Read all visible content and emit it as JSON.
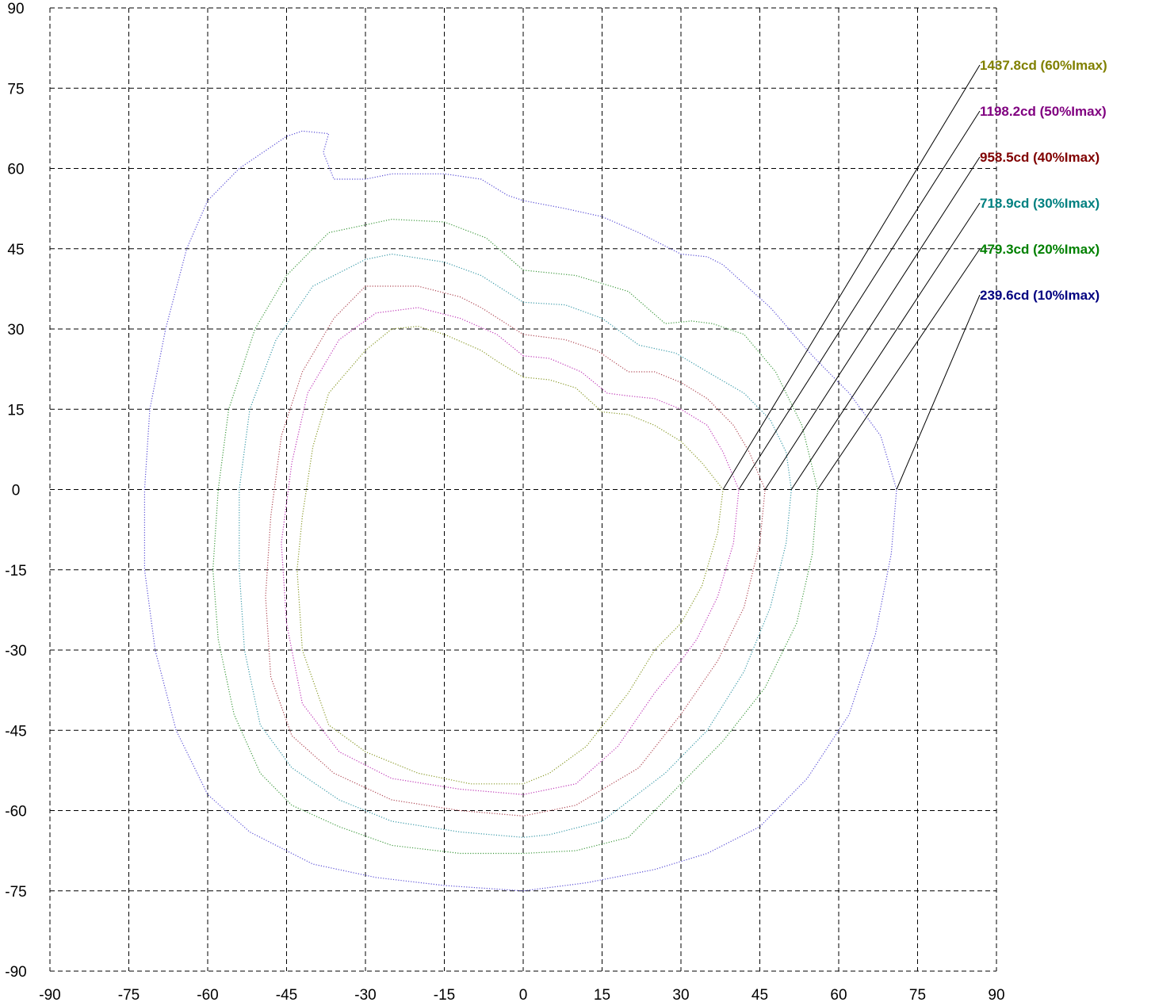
{
  "chart_data": {
    "type": "line",
    "title": "",
    "xlabel": "",
    "ylabel": "",
    "xlim": [
      -90,
      90
    ],
    "ylim": [
      -90,
      90
    ],
    "grid": true,
    "legend_placement": "right",
    "x_ticks": [
      "-90",
      "-75",
      "-60",
      "-45",
      "-30",
      "-15",
      "0",
      "15",
      "30",
      "45",
      "60",
      "75",
      "90"
    ],
    "y_ticks": [
      "90",
      "75",
      "60",
      "45",
      "30",
      "15",
      "0",
      "-15",
      "-30",
      "-45",
      "-60",
      "-75",
      "-90"
    ],
    "series": [
      {
        "name": "239.6cd (10%Imax)",
        "color": "#000080",
        "line_color": "#5a4fd6",
        "anchor": [
          71,
          0
        ],
        "points": [
          [
            0,
            54
          ],
          [
            8,
            52.5
          ],
          [
            15,
            51
          ],
          [
            22,
            48
          ],
          [
            30,
            44
          ],
          [
            35,
            43.5
          ],
          [
            38,
            42
          ],
          [
            47,
            34
          ],
          [
            55,
            25
          ],
          [
            62,
            18
          ],
          [
            68,
            10
          ],
          [
            71,
            0
          ],
          [
            70,
            -12
          ],
          [
            67,
            -27
          ],
          [
            62,
            -42
          ],
          [
            54,
            -54
          ],
          [
            45,
            -63
          ],
          [
            35,
            -68
          ],
          [
            25,
            -71
          ],
          [
            12,
            -73.5
          ],
          [
            0,
            -75
          ],
          [
            -15,
            -74
          ],
          [
            -28,
            -72.5
          ],
          [
            -40,
            -70
          ],
          [
            -52,
            -64
          ],
          [
            -60,
            -57
          ],
          [
            -66,
            -45
          ],
          [
            -70,
            -30
          ],
          [
            -72,
            -15
          ],
          [
            -72,
            0
          ],
          [
            -71,
            15
          ],
          [
            -68,
            30
          ],
          [
            -64,
            45
          ],
          [
            -60,
            54
          ],
          [
            -54,
            60
          ],
          [
            -45,
            66
          ],
          [
            -42,
            67
          ],
          [
            -37,
            66.5
          ],
          [
            -38,
            63
          ],
          [
            -36,
            58
          ],
          [
            -30,
            58
          ],
          [
            -25,
            59
          ],
          [
            -15,
            59
          ],
          [
            -8,
            58
          ],
          [
            -3,
            55
          ],
          [
            0,
            54
          ]
        ]
      },
      {
        "name": "479.3cd (20%Imax)",
        "color": "#008000",
        "line_color": "#3f9a3f",
        "anchor": [
          56,
          0
        ],
        "points": [
          [
            0,
            41
          ],
          [
            10,
            40
          ],
          [
            20,
            37
          ],
          [
            27,
            31
          ],
          [
            32,
            31.5
          ],
          [
            36,
            31
          ],
          [
            42,
            29
          ],
          [
            48,
            22
          ],
          [
            53,
            12
          ],
          [
            56,
            0
          ],
          [
            55,
            -12
          ],
          [
            52,
            -25
          ],
          [
            46,
            -37
          ],
          [
            38,
            -47
          ],
          [
            30,
            -55
          ],
          [
            20,
            -65
          ],
          [
            10,
            -67.5
          ],
          [
            0,
            -68
          ],
          [
            -12,
            -68
          ],
          [
            -25,
            -66.5
          ],
          [
            -35,
            -63
          ],
          [
            -44,
            -59
          ],
          [
            -50,
            -53
          ],
          [
            -55,
            -42
          ],
          [
            -58,
            -28
          ],
          [
            -59,
            -15
          ],
          [
            -58,
            0
          ],
          [
            -56,
            15
          ],
          [
            -51,
            30
          ],
          [
            -45,
            40
          ],
          [
            -37,
            48
          ],
          [
            -25,
            50.5
          ],
          [
            -15,
            50
          ],
          [
            -7,
            47
          ],
          [
            0,
            41
          ]
        ]
      },
      {
        "name": "718.9cd (30%Imax)",
        "color": "#008080",
        "line_color": "#3a9aa8",
        "anchor": [
          51,
          0
        ],
        "points": [
          [
            0,
            35
          ],
          [
            8,
            34.5
          ],
          [
            15,
            32
          ],
          [
            22,
            27
          ],
          [
            29,
            25.5
          ],
          [
            35,
            22
          ],
          [
            42,
            18
          ],
          [
            47,
            13
          ],
          [
            50,
            7
          ],
          [
            51,
            0
          ],
          [
            50,
            -10
          ],
          [
            47,
            -22
          ],
          [
            42,
            -34
          ],
          [
            35,
            -45
          ],
          [
            27,
            -53
          ],
          [
            15,
            -62
          ],
          [
            5,
            -64.5
          ],
          [
            0,
            -65
          ],
          [
            -12,
            -64
          ],
          [
            -25,
            -62
          ],
          [
            -35,
            -58
          ],
          [
            -44,
            -52
          ],
          [
            -50,
            -44
          ],
          [
            -53,
            -30
          ],
          [
            -54,
            -15
          ],
          [
            -54,
            0
          ],
          [
            -52,
            15
          ],
          [
            -47,
            28
          ],
          [
            -40,
            38
          ],
          [
            -30,
            43
          ],
          [
            -25,
            44
          ],
          [
            -15,
            42.5
          ],
          [
            -8,
            40
          ],
          [
            0,
            35
          ]
        ]
      },
      {
        "name": "958.5cd (40%Imax)",
        "color": "#800000",
        "line_color": "#b04a56",
        "anchor": [
          46,
          0
        ],
        "points": [
          [
            0,
            29
          ],
          [
            8,
            28
          ],
          [
            14,
            26
          ],
          [
            20,
            22
          ],
          [
            25,
            22
          ],
          [
            30,
            20
          ],
          [
            35,
            17
          ],
          [
            40,
            12
          ],
          [
            43,
            7
          ],
          [
            46,
            0
          ],
          [
            45,
            -10
          ],
          [
            42,
            -22
          ],
          [
            37,
            -32
          ],
          [
            30,
            -42
          ],
          [
            22,
            -52
          ],
          [
            10,
            -59
          ],
          [
            0,
            -61
          ],
          [
            -12,
            -60
          ],
          [
            -25,
            -58
          ],
          [
            -36,
            -53
          ],
          [
            -44,
            -46
          ],
          [
            -48,
            -35
          ],
          [
            -49,
            -20
          ],
          [
            -48,
            -5
          ],
          [
            -46,
            10
          ],
          [
            -42,
            22
          ],
          [
            -36,
            32
          ],
          [
            -30,
            38
          ],
          [
            -20,
            38
          ],
          [
            -12,
            36
          ],
          [
            -8,
            34
          ],
          [
            0,
            29
          ]
        ]
      },
      {
        "name": "1198.2cd (50%Imax)",
        "color": "#800080",
        "line_color": "#c03ab8",
        "anchor": [
          41,
          0
        ],
        "points": [
          [
            0,
            25
          ],
          [
            5,
            24.5
          ],
          [
            11,
            22
          ],
          [
            16,
            18
          ],
          [
            20,
            17.5
          ],
          [
            25,
            17
          ],
          [
            30,
            15
          ],
          [
            35,
            12
          ],
          [
            38,
            7
          ],
          [
            41,
            0
          ],
          [
            40,
            -10
          ],
          [
            37,
            -20
          ],
          [
            33,
            -28
          ],
          [
            30,
            -32
          ],
          [
            25,
            -38
          ],
          [
            18,
            -48
          ],
          [
            10,
            -55
          ],
          [
            0,
            -57
          ],
          [
            -12,
            -56
          ],
          [
            -25,
            -54
          ],
          [
            -35,
            -49
          ],
          [
            -42,
            -40
          ],
          [
            -45,
            -25
          ],
          [
            -46,
            -10
          ],
          [
            -44,
            5
          ],
          [
            -41,
            18
          ],
          [
            -35,
            28
          ],
          [
            -28,
            33
          ],
          [
            -20,
            34
          ],
          [
            -12,
            32
          ],
          [
            -5,
            29
          ],
          [
            0,
            25
          ]
        ]
      },
      {
        "name": "1437.8cd (60%Imax)",
        "color": "#808000",
        "line_color": "#8a9a2a",
        "anchor": [
          38,
          0
        ],
        "points": [
          [
            0,
            21
          ],
          [
            5,
            20.5
          ],
          [
            10,
            19
          ],
          [
            15,
            14.5
          ],
          [
            20,
            14
          ],
          [
            25,
            12
          ],
          [
            30,
            9
          ],
          [
            34,
            5
          ],
          [
            38,
            0
          ],
          [
            37,
            -8
          ],
          [
            34,
            -18
          ],
          [
            30,
            -25
          ],
          [
            25,
            -30
          ],
          [
            20,
            -38
          ],
          [
            12,
            -48
          ],
          [
            5,
            -53
          ],
          [
            0,
            -55
          ],
          [
            -10,
            -55
          ],
          [
            -20,
            -53
          ],
          [
            -30,
            -49
          ],
          [
            -37,
            -44
          ],
          [
            -42,
            -30
          ],
          [
            -43,
            -15
          ],
          [
            -42,
            -5
          ],
          [
            -40,
            8
          ],
          [
            -37,
            18
          ],
          [
            -30,
            26
          ],
          [
            -25,
            30
          ],
          [
            -20,
            30.5
          ],
          [
            -15,
            29
          ],
          [
            -8,
            26
          ],
          [
            -5,
            24
          ],
          [
            0,
            21
          ]
        ]
      }
    ]
  }
}
